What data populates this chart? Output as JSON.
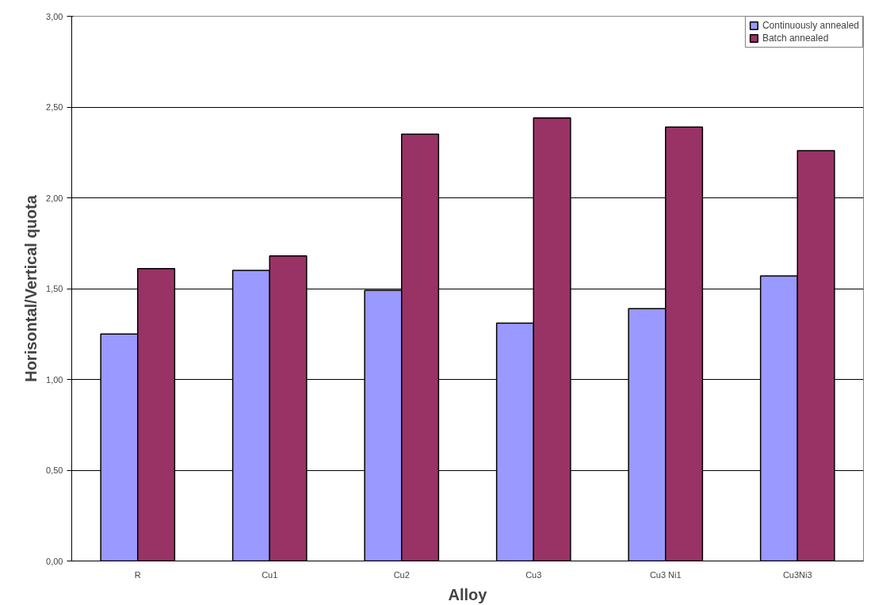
{
  "chart_data": {
    "type": "bar",
    "xlabel": "Alloy",
    "ylabel": "Horisontal/Vertical quota",
    "categories": [
      "R",
      "Cu1",
      "Cu2",
      "Cu3",
      "Cu3 Ni1",
      "Cu3Ni3"
    ],
    "series": [
      {
        "name": "Continuously annealed",
        "color": "#9999ff",
        "values": [
          1.25,
          1.6,
          1.49,
          1.31,
          1.39,
          1.57
        ]
      },
      {
        "name": "Batch annealed",
        "color": "#993366",
        "values": [
          1.61,
          1.68,
          2.35,
          2.44,
          2.39,
          2.26
        ]
      }
    ],
    "ylim": [
      0,
      3
    ],
    "yticks": [
      {
        "value": 0,
        "label": "0,00"
      },
      {
        "value": 0.5,
        "label": "0,50"
      },
      {
        "value": 1,
        "label": "1,00"
      },
      {
        "value": 1.5,
        "label": "1,50"
      },
      {
        "value": 2,
        "label": "2,00"
      },
      {
        "value": 2.5,
        "label": "2,50"
      },
      {
        "value": 3,
        "label": "3,00"
      }
    ],
    "grid": "y",
    "legend": "top right"
  }
}
